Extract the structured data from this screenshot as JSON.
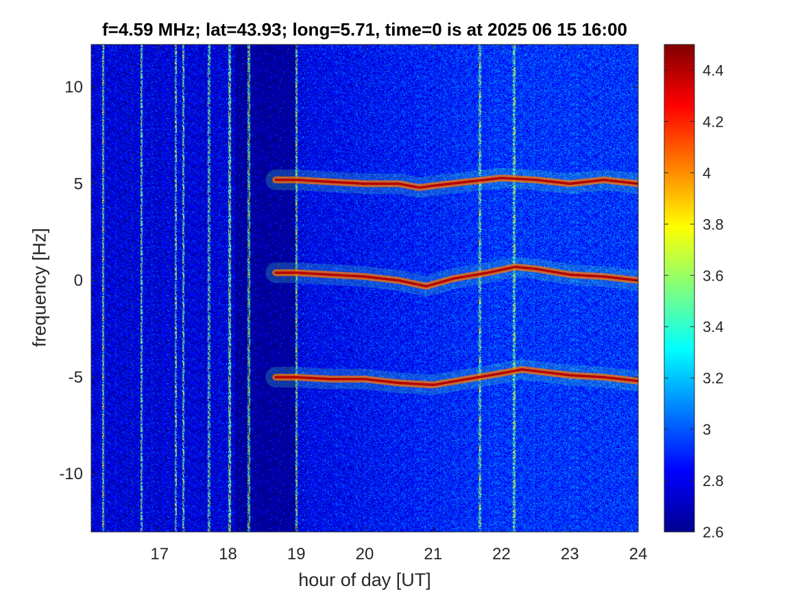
{
  "chart_data": {
    "type": "heatmap",
    "title": "f=4.59 MHz;  lat=43.93; long=5.71, time=0 is at 2025 06 15 16:00",
    "xlabel": "hour of day [UT]",
    "ylabel": "frequency [Hz]",
    "xlim": [
      16,
      24
    ],
    "ylim": [
      -13,
      12.2
    ],
    "xticks": [
      17,
      18,
      19,
      20,
      21,
      22,
      23,
      24
    ],
    "xtick_labels": [
      "17",
      "18",
      "19",
      "20",
      "21",
      "22",
      "23",
      "24"
    ],
    "yticks": [
      10,
      5,
      0,
      -5,
      -10
    ],
    "ytick_labels": [
      "10",
      "5",
      "0",
      "-5",
      "-10"
    ],
    "colorbar": {
      "colormap": "jet",
      "clim": [
        2.6,
        4.5
      ],
      "ticks": [
        4.4,
        4.2,
        4.0,
        3.8,
        3.6,
        3.4,
        3.2,
        3.0,
        2.8,
        2.6
      ],
      "tick_labels": [
        "4.4",
        "4.2",
        "4",
        "3.8",
        "3.6",
        "3.4",
        "3.2",
        "3",
        "2.8",
        "2.6"
      ]
    },
    "background_level": 2.85,
    "traces": [
      {
        "start_hour": 18.7,
        "end_hour": 24.0,
        "peak_level": 4.4,
        "points": [
          [
            18.7,
            5.2
          ],
          [
            19.0,
            5.2
          ],
          [
            19.5,
            5.1
          ],
          [
            20.0,
            5.0
          ],
          [
            20.5,
            5.0
          ],
          [
            20.8,
            4.8
          ],
          [
            21.0,
            4.9
          ],
          [
            21.5,
            5.1
          ],
          [
            22.0,
            5.3
          ],
          [
            22.5,
            5.2
          ],
          [
            23.0,
            5.0
          ],
          [
            23.5,
            5.2
          ],
          [
            24.0,
            5.0
          ]
        ]
      },
      {
        "start_hour": 18.7,
        "end_hour": 24.0,
        "peak_level": 4.4,
        "points": [
          [
            18.7,
            0.4
          ],
          [
            19.0,
            0.4
          ],
          [
            19.5,
            0.3
          ],
          [
            20.0,
            0.2
          ],
          [
            20.5,
            0.0
          ],
          [
            20.9,
            -0.3
          ],
          [
            21.3,
            0.1
          ],
          [
            21.8,
            0.4
          ],
          [
            22.2,
            0.7
          ],
          [
            22.5,
            0.6
          ],
          [
            23.0,
            0.3
          ],
          [
            23.5,
            0.2
          ],
          [
            24.0,
            0.0
          ]
        ]
      },
      {
        "start_hour": 18.7,
        "end_hour": 24.0,
        "peak_level": 4.4,
        "points": [
          [
            18.7,
            -5.0
          ],
          [
            19.0,
            -5.0
          ],
          [
            19.5,
            -5.1
          ],
          [
            20.0,
            -5.1
          ],
          [
            20.5,
            -5.3
          ],
          [
            21.0,
            -5.4
          ],
          [
            21.5,
            -5.1
          ],
          [
            22.0,
            -4.8
          ],
          [
            22.3,
            -4.6
          ],
          [
            23.0,
            -4.9
          ],
          [
            23.5,
            -5.0
          ],
          [
            24.0,
            -5.2
          ]
        ]
      }
    ],
    "vertical_interference_hours": [
      16.17,
      16.73,
      17.23,
      17.34,
      17.72,
      18.02,
      18.3,
      19.0,
      21.68,
      22.18
    ]
  }
}
